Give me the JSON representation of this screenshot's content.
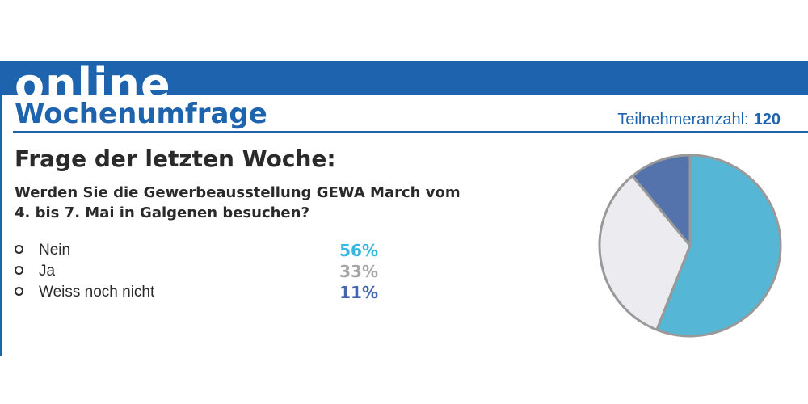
{
  "header": {
    "brand": "online",
    "section_title": "Wochenumfrage",
    "participants_label": "Teilnehmeranzahl:",
    "participants_count": "120"
  },
  "poll": {
    "heading": "Frage der letzten Woche:",
    "question": "Werden Sie die Gewerbeausstellung GEWA March vom 4. bis 7. Mai in Galgenen besuchen?"
  },
  "colors": {
    "brand_blue": "#1e63ad",
    "outline": "#999999"
  },
  "chart_data": {
    "type": "pie",
    "title": "",
    "slices": [
      {
        "label": "Nein",
        "value": 56,
        "display": "56%",
        "color": "#56b6d6",
        "text_color": "#35b7e0"
      },
      {
        "label": "Ja",
        "value": 33,
        "display": "33%",
        "color": "#ececf0",
        "text_color": "#a6a6a6"
      },
      {
        "label": "Weiss noch nicht",
        "value": 11,
        "display": "11%",
        "color": "#5472ab",
        "text_color": "#4466ae"
      }
    ],
    "legend": "left"
  }
}
